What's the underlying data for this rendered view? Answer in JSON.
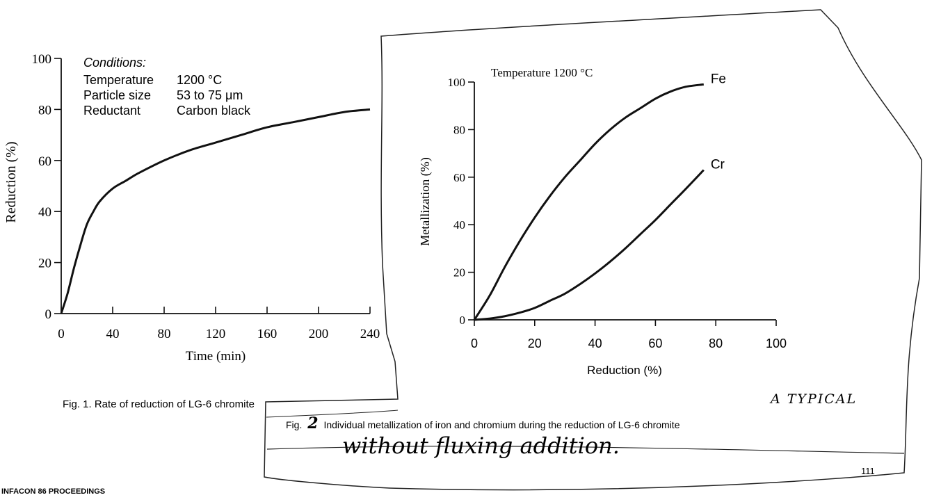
{
  "chart_data": [
    {
      "type": "line",
      "caption": "Fig. 1. Rate of reduction of LG-6 chromite",
      "xlabel": "Time (min)",
      "ylabel": "Reduction (%)",
      "xlim": [
        0,
        240
      ],
      "ylim": [
        0,
        100
      ],
      "x_ticks": [
        "0",
        "40",
        "80",
        "120",
        "160",
        "200",
        "240"
      ],
      "y_ticks": [
        "0",
        "20",
        "40",
        "60",
        "80",
        "100"
      ],
      "conditions": {
        "heading": "Conditions:",
        "rows": [
          {
            "label": "Temperature",
            "value": "1200 °C"
          },
          {
            "label": "Particle size",
            "value": "53 to 75 μm"
          },
          {
            "label": "Reductant",
            "value": "Carbon black"
          }
        ]
      },
      "series": [
        {
          "x": [
            0,
            5,
            10,
            15,
            20,
            25,
            30,
            40,
            50,
            60,
            80,
            100,
            120,
            140,
            160,
            180,
            200,
            220,
            240
          ],
          "y": [
            0,
            8,
            18,
            27,
            35,
            40,
            44,
            49,
            52,
            55,
            60,
            64,
            67,
            70,
            73,
            75,
            77,
            79,
            80
          ]
        }
      ]
    },
    {
      "type": "line",
      "caption_prefix": "Fig.",
      "caption_number": "2",
      "caption": "Individual metallization of iron and chromium during the reduction of LG-6 chromite",
      "annotation_top": "A TYPICAL",
      "annotation_bottom": "without fluxing addition.",
      "title": "Temperature 1200 °C",
      "xlabel": "Reduction (%)",
      "ylabel": "Metallization (%)",
      "xlim": [
        0,
        100
      ],
      "ylim": [
        0,
        100
      ],
      "x_ticks": [
        "0",
        "20",
        "40",
        "60",
        "80",
        "100"
      ],
      "y_ticks": [
        "0",
        "20",
        "40",
        "60",
        "80",
        "100"
      ],
      "series": [
        {
          "name": "Fe",
          "x": [
            0,
            5,
            10,
            15,
            20,
            25,
            30,
            35,
            40,
            45,
            50,
            55,
            60,
            65,
            70,
            76
          ],
          "y": [
            0,
            10,
            22,
            33,
            43,
            52,
            60,
            67,
            74,
            80,
            85,
            89,
            93,
            96,
            98,
            99
          ]
        },
        {
          "name": "Cr",
          "x": [
            0,
            5,
            10,
            15,
            20,
            25,
            30,
            35,
            40,
            45,
            50,
            55,
            60,
            65,
            70,
            76
          ],
          "y": [
            0,
            0.5,
            1.5,
            3,
            5,
            8,
            11,
            15,
            19.5,
            24.5,
            30,
            36,
            42,
            48.5,
            55,
            63
          ]
        }
      ]
    }
  ],
  "footer": {
    "proceedings": "INFACON 86 PROCEEDINGS",
    "page_number": "111"
  }
}
